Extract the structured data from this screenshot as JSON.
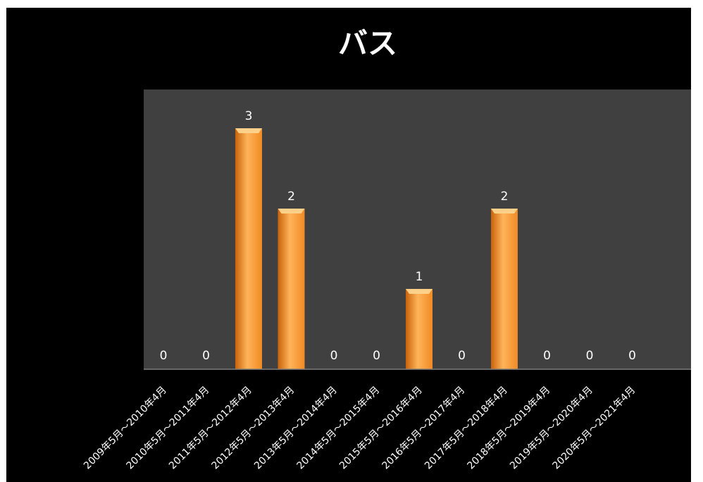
{
  "chart_data": {
    "type": "bar",
    "title": "バス",
    "categories": [
      "2009年5月～2010年4月",
      "2010年5月～2011年4月",
      "2011年5月～2012年4月",
      "2012年5月～2013年4月",
      "2013年5月～2014年4月",
      "2014年5月～2015年4月",
      "2015年5月～2016年4月",
      "2016年5月～2017年4月",
      "2017年5月～2018年4月",
      "2018年5月～2019年4月",
      "2019年5月～2020年4月",
      "2020年5月～2021年4月"
    ],
    "values": [
      0,
      0,
      3,
      2,
      0,
      0,
      1,
      0,
      2,
      0,
      0,
      0
    ],
    "ylim": [
      0,
      3.5
    ],
    "grid": false,
    "legend": "none",
    "colors": {
      "background": "#000000",
      "plot_area": "#404040",
      "bar": "#f08a24",
      "bar_light": "#ffb45a",
      "bar_dark": "#c8620a",
      "text": "#ffffff"
    }
  }
}
